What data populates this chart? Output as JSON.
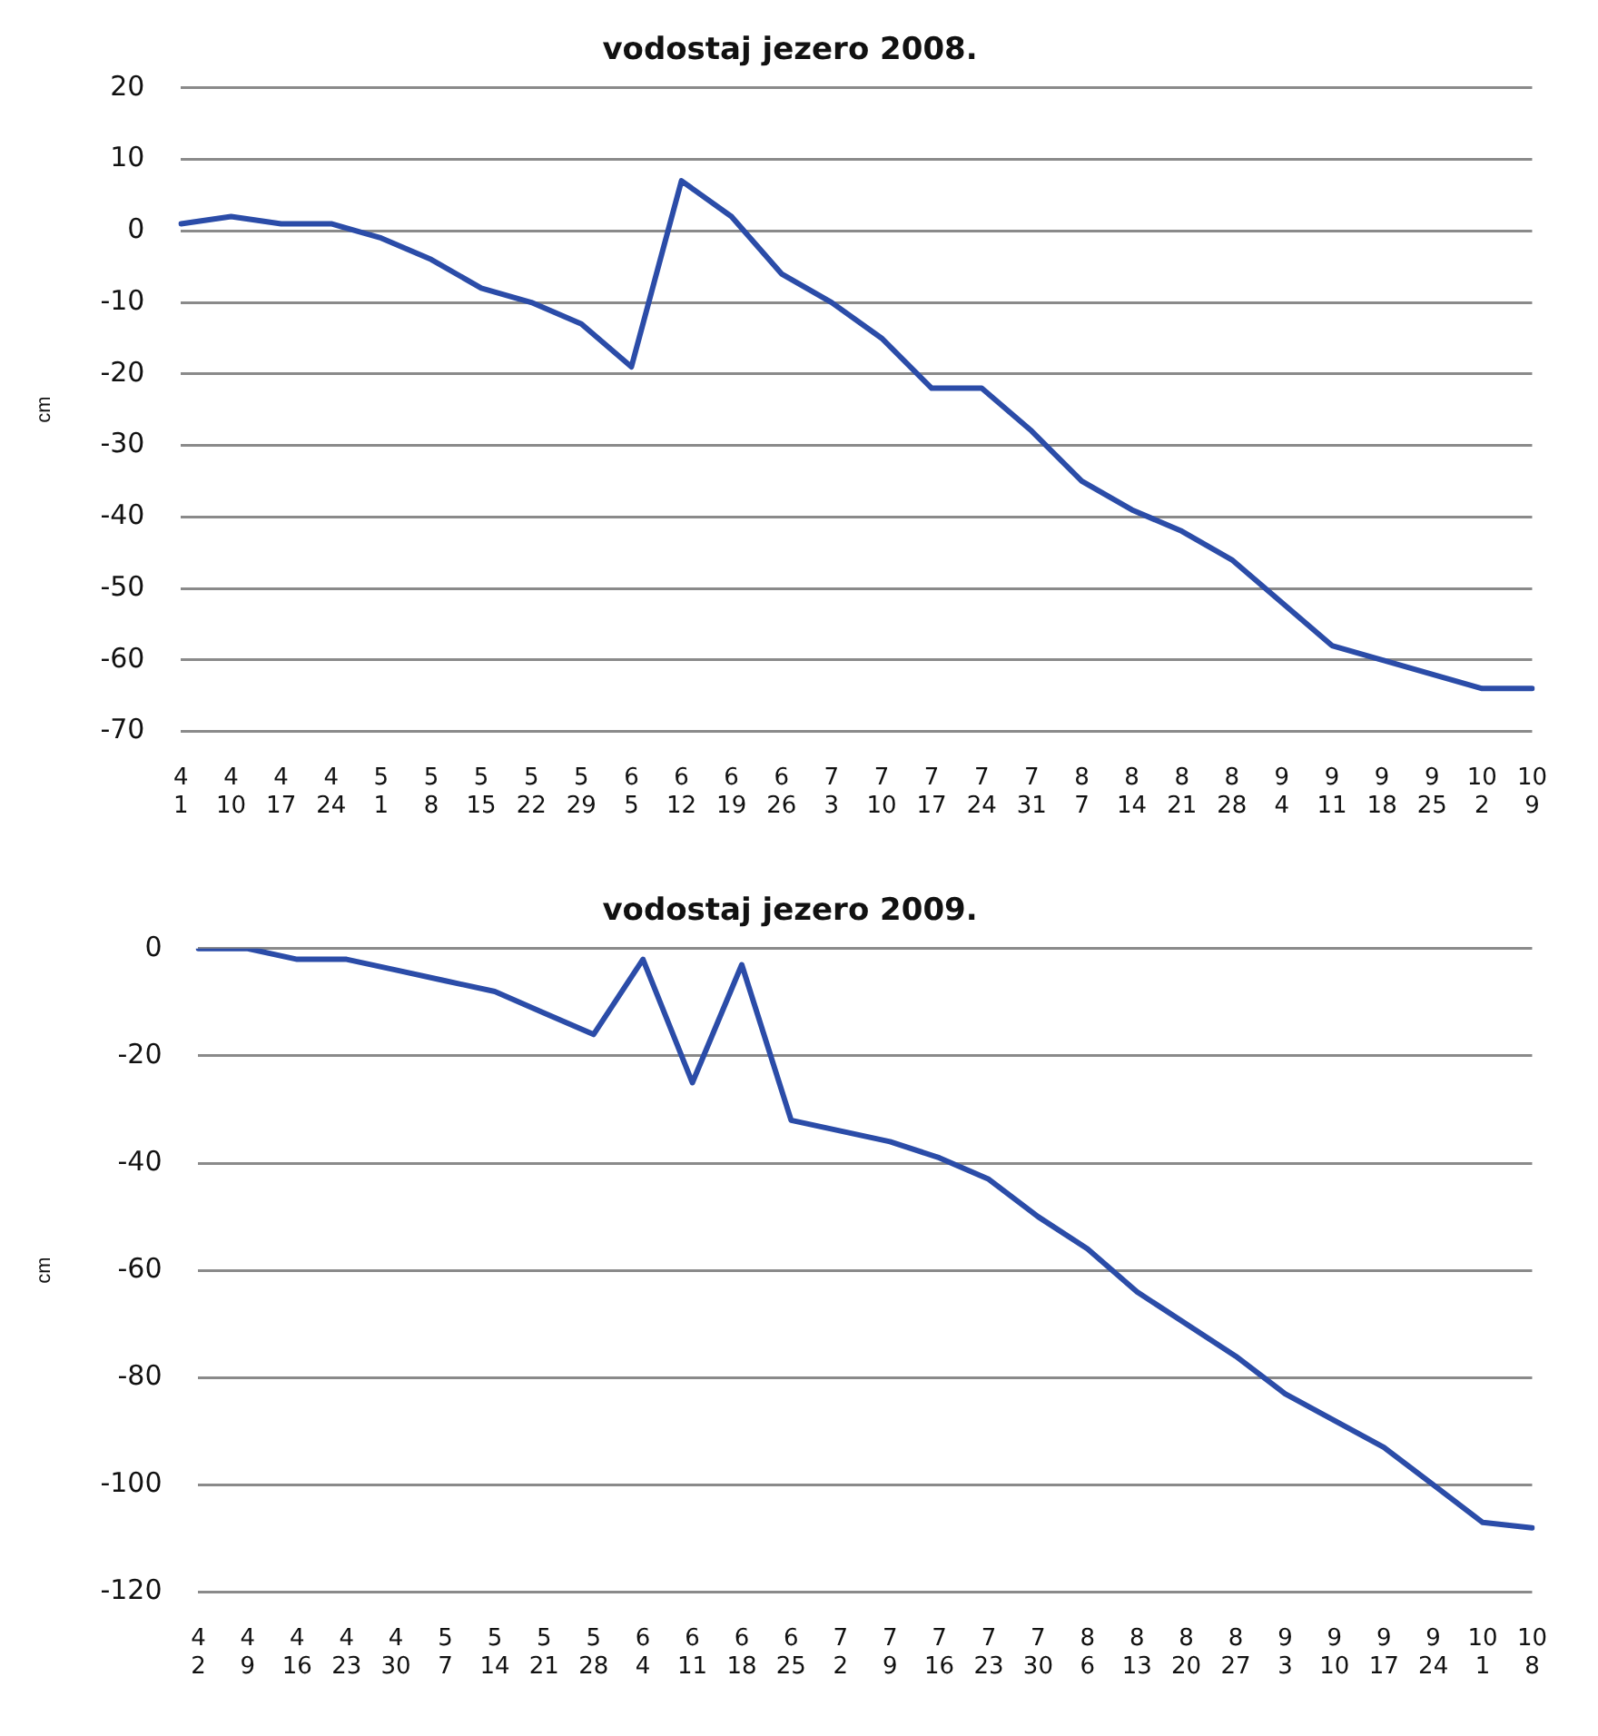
{
  "chart_data": [
    {
      "type": "line",
      "title": "vodostaj jezero 2008.",
      "ylabel": "cm",
      "categories": [
        "4\n1",
        "4\n10",
        "4\n17",
        "4\n24",
        "5\n1",
        "5\n8",
        "5\n15",
        "5\n22",
        "5\n29",
        "6\n5",
        "6\n12",
        "6\n19",
        "6\n26",
        "7\n3",
        "7\n10",
        "7\n17",
        "7\n24",
        "7\n31",
        "8\n7",
        "8\n14",
        "8\n21",
        "8\n28",
        "9\n4",
        "9\n11",
        "9\n18",
        "9\n25",
        "10\n2",
        "10\n9"
      ],
      "series": [
        {
          "color": "#2b4ca8",
          "values": [
            1,
            2,
            1,
            1,
            -1,
            -4,
            -8,
            -10,
            -13,
            -19,
            7,
            2,
            -6,
            -10,
            -15,
            -22,
            -22,
            -28,
            -35,
            -39,
            -42,
            -46,
            -52,
            -58,
            -60,
            -62,
            -64,
            -64
          ]
        }
      ],
      "ylim": [
        -70,
        20
      ],
      "yticks": [
        20,
        10,
        0,
        -10,
        -20,
        -30,
        -40,
        -50,
        -60,
        -70
      ],
      "grid": "y",
      "legend": false,
      "marker": "none",
      "line_style": "solid"
    },
    {
      "type": "line",
      "title": "vodostaj jezero 2009.",
      "ylabel": "cm",
      "categories": [
        "4\n2",
        "4\n9",
        "4\n16",
        "4\n23",
        "4\n30",
        "5\n7",
        "5\n14",
        "5\n21",
        "5\n28",
        "6\n4",
        "6\n11",
        "6\n18",
        "6\n25",
        "7\n2",
        "7\n9",
        "7\n16",
        "7\n23",
        "7\n30",
        "8\n6",
        "8\n13",
        "8\n20",
        "8\n27",
        "9\n3",
        "9\n10",
        "9\n17",
        "9\n24",
        "10\n1",
        "10\n8"
      ],
      "series": [
        {
          "color": "#2b4ca8",
          "values": [
            0,
            0,
            -2,
            -2,
            -4,
            -6,
            -8,
            -12,
            -16,
            -2,
            -25,
            -3,
            -32,
            -34,
            -36,
            -39,
            -43,
            -50,
            -56,
            -64,
            -70,
            -76,
            -83,
            -88,
            -93,
            -100,
            -107,
            -108
          ]
        }
      ],
      "ylim": [
        -120,
        0
      ],
      "yticks": [
        0,
        -20,
        -40,
        -60,
        -80,
        -100,
        -120
      ],
      "grid": "y",
      "legend": false,
      "marker": "none",
      "line_style": "solid"
    }
  ]
}
